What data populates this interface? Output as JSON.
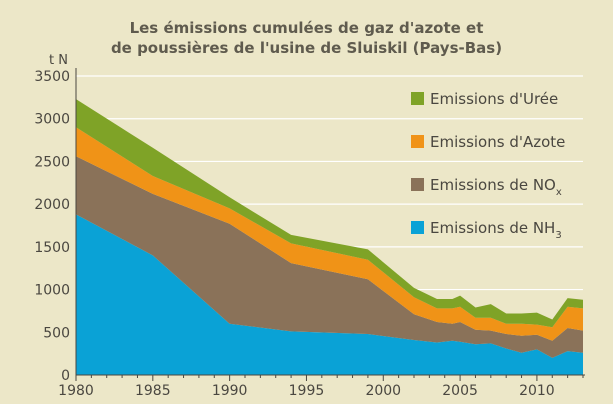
{
  "chart_data": {
    "type": "area",
    "stacked": true,
    "title_line1": "Les émissions cumulées de gaz d'azote et",
    "title_line2": "de poussières de l'usine de Sluiskil (Pays-Bas)",
    "ylabel": "t N",
    "xlim": [
      1980,
      2013
    ],
    "ylim": [
      0,
      3500
    ],
    "x_ticks": [
      1980,
      1985,
      1990,
      1995,
      2000,
      2005,
      2010
    ],
    "y_ticks": [
      0,
      500,
      1000,
      1500,
      2000,
      2500,
      3000,
      3500
    ],
    "grid": true,
    "legend_position": "top-right",
    "x": [
      1980,
      1985,
      1990,
      1994,
      1999,
      2002,
      2003.5,
      2004.5,
      2005,
      2006,
      2007,
      2008,
      2009,
      2010,
      2011,
      2012,
      2013
    ],
    "series": [
      {
        "name": "Emissions de NH",
        "sub": "3",
        "color": "#0aa2d6",
        "values": [
          1880,
          1400,
          600,
          510,
          480,
          410,
          380,
          400,
          390,
          360,
          370,
          310,
          260,
          300,
          200,
          280,
          260
        ]
      },
      {
        "name": "Emissions de NO",
        "sub": "x",
        "color": "#8a7259",
        "values": [
          680,
          720,
          1170,
          800,
          640,
          300,
          240,
          200,
          230,
          170,
          150,
          170,
          200,
          170,
          200,
          270,
          260
        ]
      },
      {
        "name": "Emissions d'Azote",
        "sub": "",
        "color": "#f09317",
        "values": [
          340,
          210,
          180,
          230,
          230,
          200,
          160,
          180,
          180,
          140,
          150,
          120,
          140,
          120,
          160,
          250,
          260
        ]
      },
      {
        "name": "Emissions d'Urée",
        "sub": "",
        "color": "#7fa327",
        "values": [
          330,
          330,
          130,
          100,
          120,
          110,
          110,
          110,
          130,
          120,
          160,
          120,
          120,
          140,
          90,
          100,
          100
        ]
      }
    ]
  }
}
